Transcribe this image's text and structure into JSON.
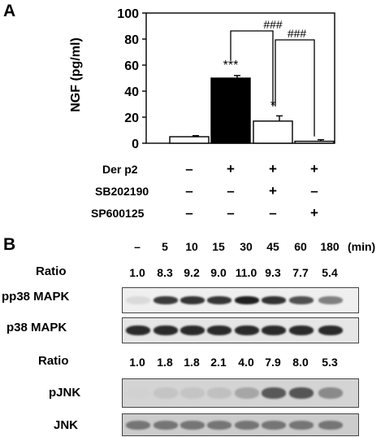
{
  "panel_a": {
    "letter": "A",
    "chart_data": {
      "type": "bar",
      "ylabel": "NGF (pg/ml)",
      "ylim": [
        0,
        100
      ],
      "yticks": [
        "0",
        "20",
        "40",
        "60",
        "80",
        "100"
      ],
      "bars": [
        {
          "value": 5,
          "error": 0.8,
          "fill": "#ffffff",
          "sig": ""
        },
        {
          "value": 50,
          "error": 2,
          "fill": "#000000",
          "sig": "***"
        },
        {
          "value": 17,
          "error": 4,
          "fill": "#ffffff",
          "sig": "*"
        },
        {
          "value": 1.5,
          "error": 1.2,
          "fill": "#ffffff",
          "sig": ""
        }
      ],
      "brackets": [
        "###",
        "###"
      ],
      "treatments": [
        {
          "name": "Der p2",
          "marks": [
            "–",
            "+",
            "+",
            "+"
          ]
        },
        {
          "name": "SB202190",
          "marks": [
            "–",
            "–",
            "+",
            "–"
          ]
        },
        {
          "name": "SP600125",
          "marks": [
            "–",
            "–",
            "–",
            "+"
          ]
        }
      ]
    }
  },
  "panel_b": {
    "letter": "B",
    "times": [
      "–",
      "5",
      "10",
      "15",
      "30",
      "45",
      "60",
      "180"
    ],
    "time_unit": "(min)",
    "ratio_label": "Ratio",
    "p38_ratios": [
      "1.0",
      "8.3",
      "9.2",
      "9.0",
      "11.0",
      "9.3",
      "7.7",
      "5.4"
    ],
    "jnk_ratios": [
      "1.0",
      "1.8",
      "1.8",
      "2.1",
      "4.0",
      "7.9",
      "8.0",
      "5.3"
    ],
    "blots": {
      "pp38": {
        "label": "pp38 MAPK",
        "intensity": [
          0.08,
          0.82,
          0.85,
          0.84,
          0.95,
          0.86,
          0.72,
          0.5
        ]
      },
      "p38": {
        "label": "p38 MAPK",
        "intensity": [
          0.9,
          0.9,
          0.9,
          0.9,
          0.9,
          0.9,
          0.9,
          0.9
        ]
      },
      "pjnk": {
        "label": "pJNK",
        "intensity": [
          0.12,
          0.18,
          0.18,
          0.2,
          0.32,
          0.68,
          0.7,
          0.45
        ]
      },
      "jnk": {
        "label": "JNK",
        "intensity": [
          0.55,
          0.55,
          0.55,
          0.55,
          0.55,
          0.55,
          0.55,
          0.55
        ]
      }
    }
  }
}
